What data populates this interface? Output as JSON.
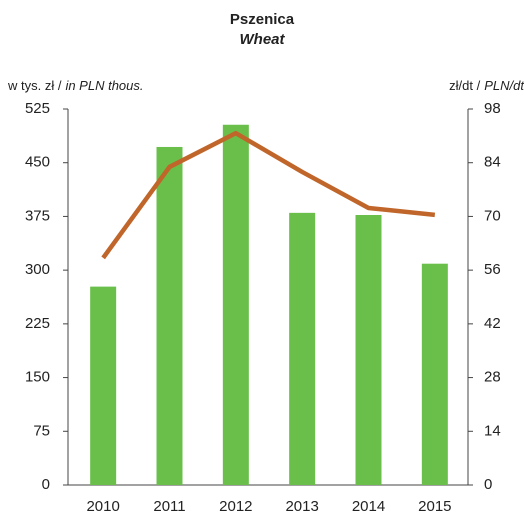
{
  "chart_data": {
    "type": "bar_line",
    "title": "Pszenica",
    "subtitle": "Wheat",
    "ylabel": "w tys. zł /",
    "ylabel_italic": "in PLN thous.",
    "y2label": "zł/dt /",
    "y2label_italic": "PLN/dt",
    "categories": [
      "2010",
      "2011",
      "2012",
      "2013",
      "2014",
      "2015"
    ],
    "series": [
      {
        "type": "bar",
        "color": "#6abf4b",
        "values": [
          277,
          472,
          503,
          380,
          377,
          309
        ]
      },
      {
        "type": "line",
        "axis": "y2",
        "color": "#c0662a",
        "values": [
          59.2,
          82.9,
          91.7,
          81.6,
          72.2,
          70.4
        ]
      }
    ],
    "ylim": [
      0,
      525
    ],
    "yticks": [
      0,
      75,
      150,
      225,
      300,
      375,
      450,
      525
    ],
    "y2lim": [
      0,
      98
    ],
    "y2ticks": [
      0,
      14,
      28,
      42,
      56,
      70,
      84,
      98
    ]
  }
}
